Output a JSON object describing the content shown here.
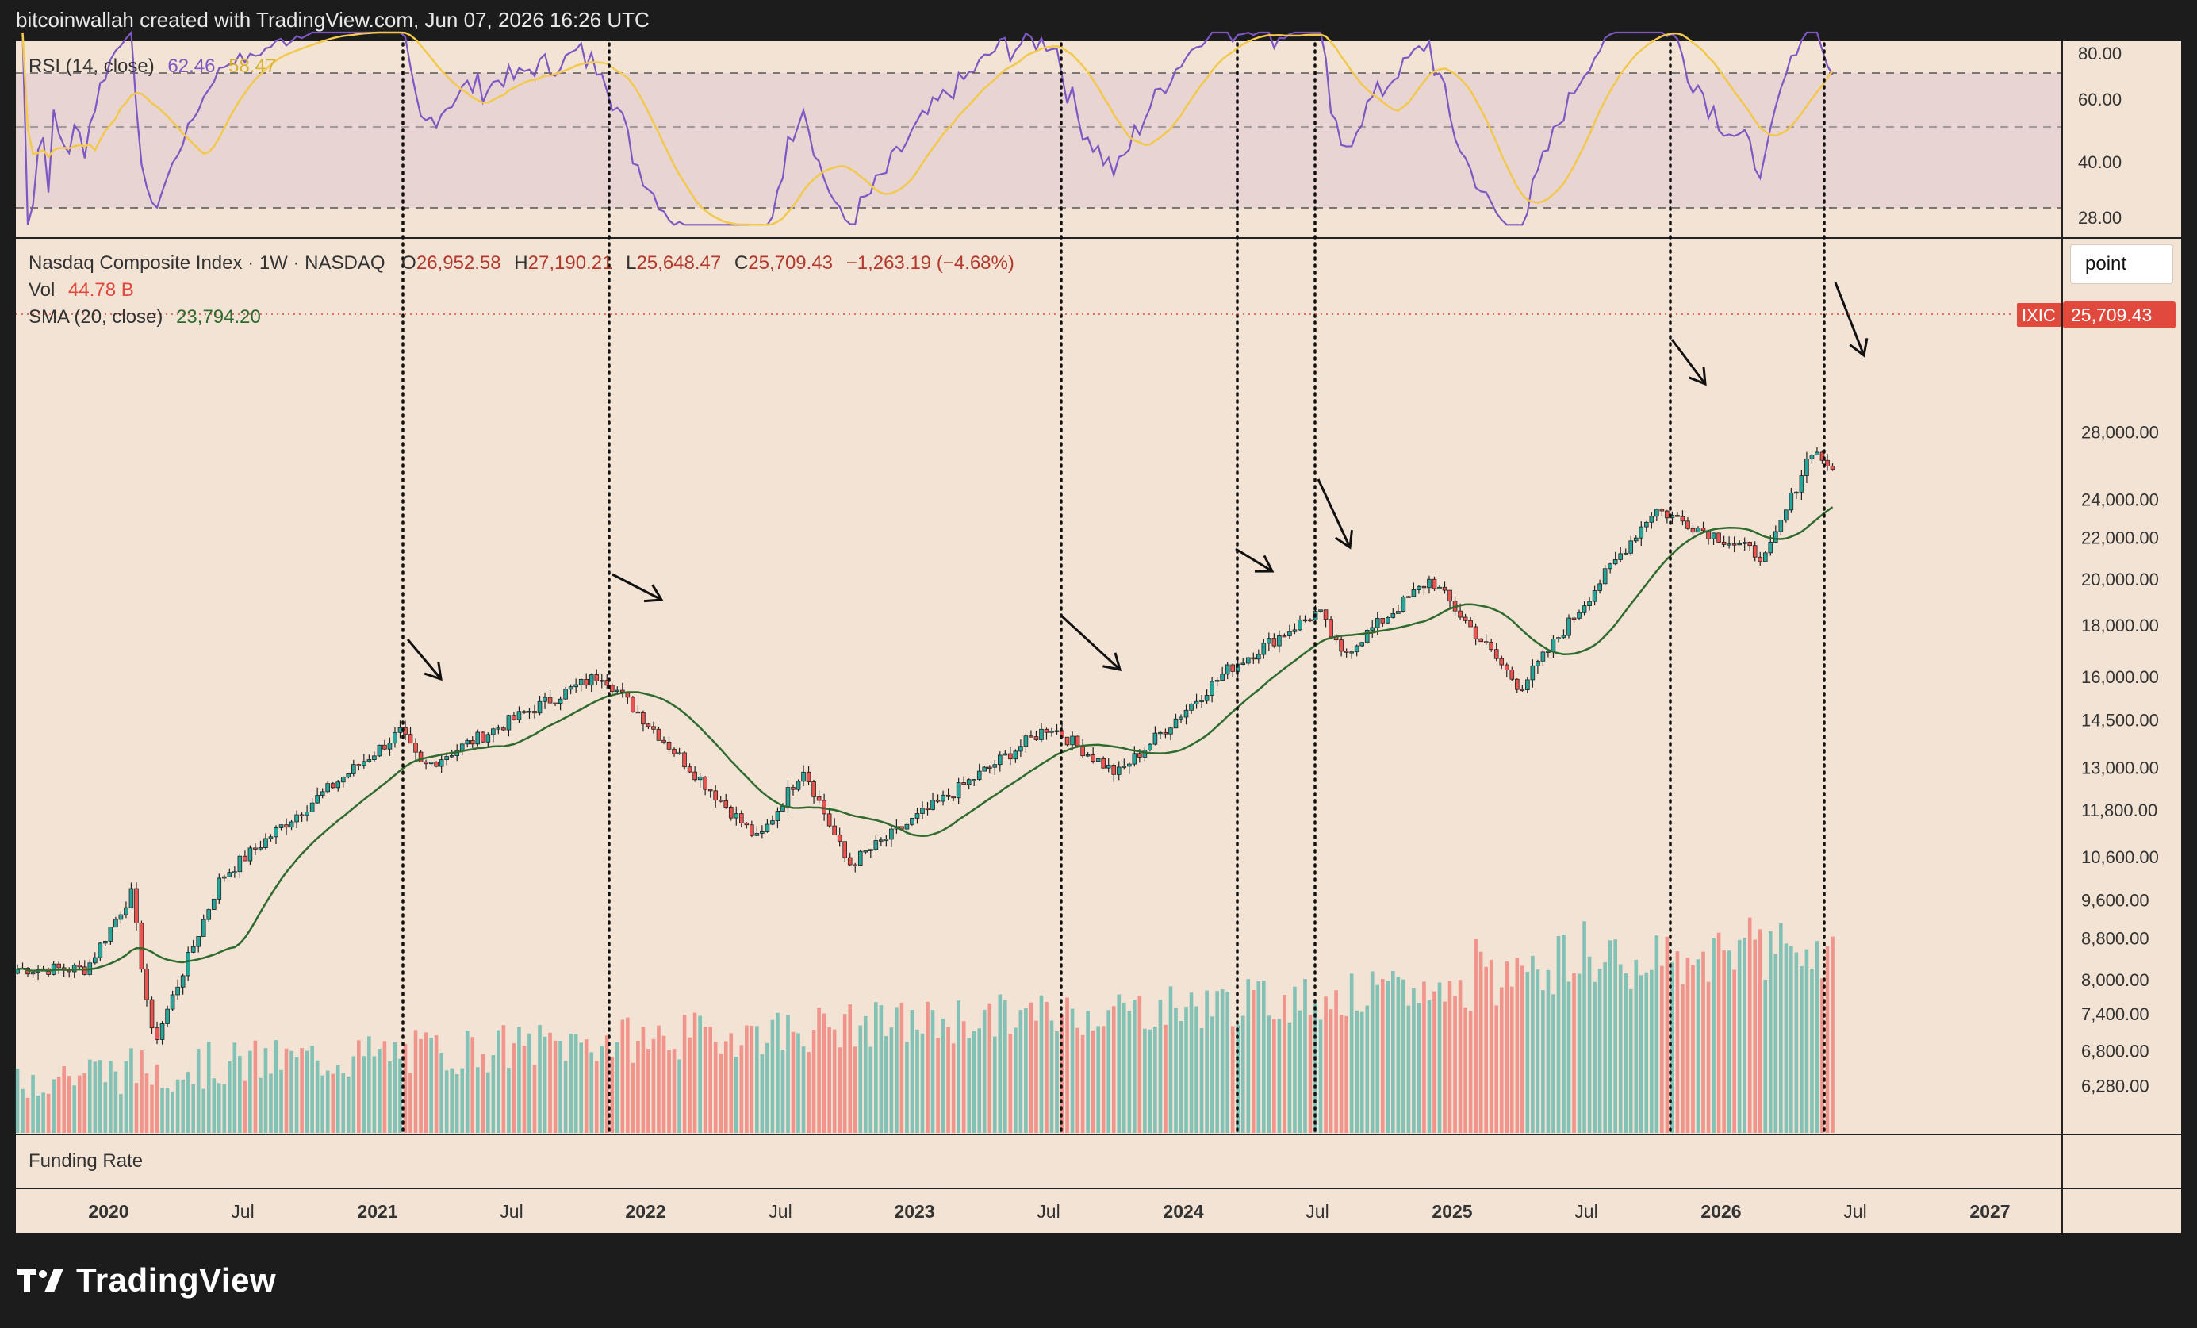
{
  "header": {
    "attribution": "bitcoinwallah created with TradingView.com, Jun 07, 2026 16:26 UTC"
  },
  "rsi": {
    "label": "RSI (14, close)",
    "value": "62.46",
    "ma_value": "58.47",
    "line_color": "#7e57c2",
    "ma_color": "#f2c94c",
    "ticks": [
      "80.00",
      "60.00",
      "40.00",
      "28.00"
    ]
  },
  "price_legend": {
    "symbol": "Nasdaq Composite Index · 1W · NASDAQ",
    "open_label": "O",
    "open": "26,952.58",
    "high_label": "H",
    "high": "27,190.21",
    "low_label": "L",
    "low": "25,648.47",
    "close_label": "C",
    "close": "25,709.43",
    "change": "−1,263.19 (−4.68%)",
    "vol_label": "Vol",
    "vol_value": "44.78 B",
    "sma_label": "SMA (20, close)",
    "sma_value": "23,794.20"
  },
  "price_badge": {
    "ticker": "IXIC",
    "value": "25,709.43",
    "color": "#e0493c"
  },
  "point_button": {
    "label": "point"
  },
  "funding_rate": {
    "label": "Funding Rate"
  },
  "brand": {
    "name": "TradingView"
  },
  "colors": {
    "up": "#26a69a",
    "down": "#ef5350",
    "sma": "#2f6b2f",
    "background": "#f2e3d4"
  },
  "chart_data": {
    "type": "candlestick",
    "title": "Nasdaq Composite Index · 1W · NASDAQ",
    "y_scale": "log",
    "y_ticks": [
      28000,
      24000,
      22000,
      20000,
      18000,
      16000,
      14500,
      13000,
      11800,
      10600,
      9600,
      8800,
      8000,
      7400,
      6800,
      6280
    ],
    "x_ticks": [
      "2020",
      "Jul",
      "2021",
      "Jul",
      "2022",
      "Jul",
      "2023",
      "Jul",
      "2024",
      "Jul",
      "2025",
      "Jul",
      "2026",
      "Jul",
      "2027"
    ],
    "anchors": [
      {
        "date": "2019-12",
        "close": 8200
      },
      {
        "date": "2020-02",
        "close": 9750
      },
      {
        "date": "2020-03",
        "close": 6900
      },
      {
        "date": "2020-06",
        "close": 10100
      },
      {
        "date": "2020-09",
        "close": 11500
      },
      {
        "date": "2021-02",
        "close": 14100
      },
      {
        "date": "2021-03",
        "close": 13000
      },
      {
        "date": "2021-09",
        "close": 15300
      },
      {
        "date": "2021-11",
        "close": 16100
      },
      {
        "date": "2022-06",
        "close": 11000
      },
      {
        "date": "2022-08",
        "close": 13000
      },
      {
        "date": "2022-10",
        "close": 10400
      },
      {
        "date": "2023-07",
        "close": 14300
      },
      {
        "date": "2023-10",
        "close": 12800
      },
      {
        "date": "2024-03",
        "close": 16300
      },
      {
        "date": "2024-07",
        "close": 18600
      },
      {
        "date": "2024-08",
        "close": 16800
      },
      {
        "date": "2024-12",
        "close": 20000
      },
      {
        "date": "2025-04",
        "close": 15600
      },
      {
        "date": "2025-10",
        "close": 23500
      },
      {
        "date": "2026-03",
        "close": 21000
      },
      {
        "date": "2026-05",
        "close": 26950
      },
      {
        "date": "2026-06",
        "close": 25709
      }
    ],
    "rsi_ylim": [
      20,
      85
    ],
    "rsi_levels": [
      70,
      50,
      30
    ]
  }
}
